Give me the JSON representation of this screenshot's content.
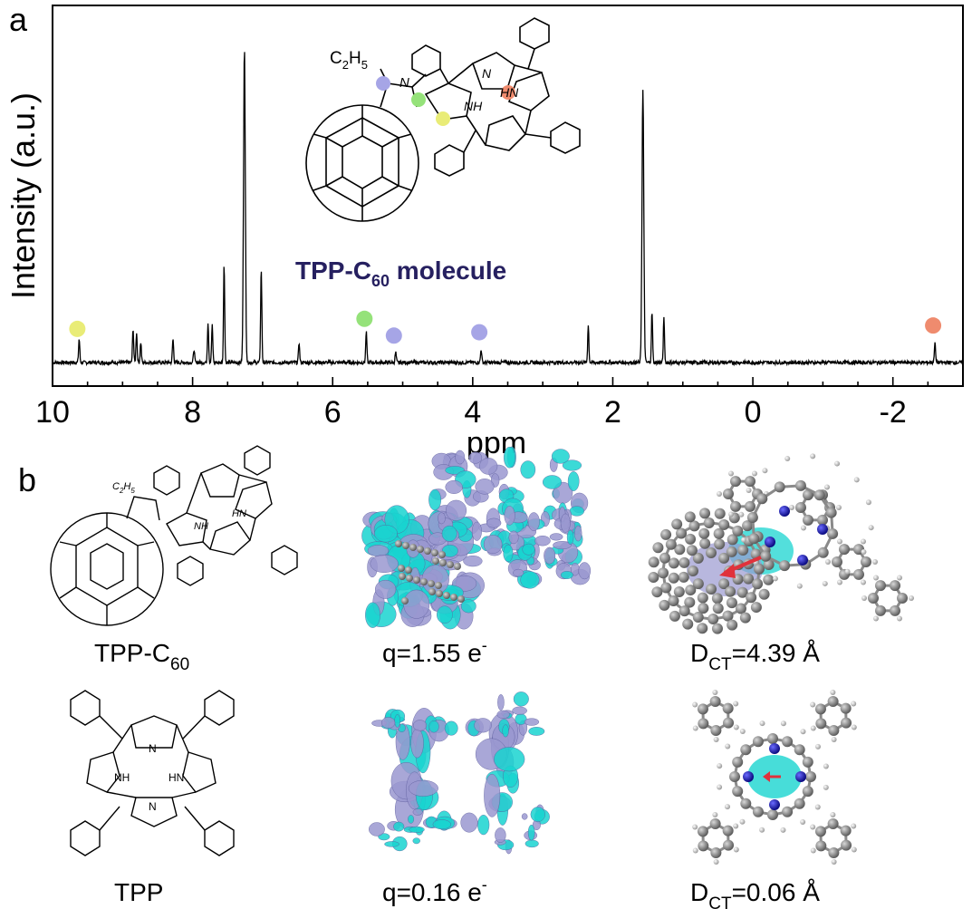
{
  "panel_labels": {
    "a": "a",
    "b": "b"
  },
  "nmr": {
    "molecule_label": "TPP-C",
    "molecule_sub": "60",
    "molecule_suffix": " molecule",
    "ethyl_label": "C",
    "ethyl_sub1": "2",
    "ethyl_mid": "H",
    "ethyl_sub2": "5",
    "N_label": "N",
    "NH_label": "NH",
    "HN_label": "HN"
  },
  "chart_data": {
    "type": "line",
    "title": "",
    "xlabel": "ppm",
    "ylabel": "Intensity (a.u.)",
    "xlim": [
      10.0,
      -3.0
    ],
    "ylim": [
      0,
      100
    ],
    "xticks": [
      10,
      8,
      6,
      4,
      2,
      0,
      -2
    ],
    "xtick_labels": [
      "10",
      "8",
      "6",
      "4",
      "2",
      "0",
      "-2"
    ],
    "baseline": 3,
    "peaks": [
      {
        "ppm": 9.62,
        "height": 10
      },
      {
        "ppm": 8.85,
        "height": 13
      },
      {
        "ppm": 8.8,
        "height": 12
      },
      {
        "ppm": 8.74,
        "height": 9
      },
      {
        "ppm": 8.28,
        "height": 10
      },
      {
        "ppm": 7.98,
        "height": 7
      },
      {
        "ppm": 7.78,
        "height": 15
      },
      {
        "ppm": 7.72,
        "height": 14
      },
      {
        "ppm": 7.55,
        "height": 32
      },
      {
        "ppm": 7.26,
        "height": 97
      },
      {
        "ppm": 7.02,
        "height": 31
      },
      {
        "ppm": 6.48,
        "height": 9
      },
      {
        "ppm": 5.52,
        "height": 12
      },
      {
        "ppm": 5.1,
        "height": 6
      },
      {
        "ppm": 3.88,
        "height": 7
      },
      {
        "ppm": 2.35,
        "height": 14
      },
      {
        "ppm": 1.57,
        "height": 84
      },
      {
        "ppm": 1.44,
        "height": 18
      },
      {
        "ppm": 1.27,
        "height": 16
      },
      {
        "ppm": -2.6,
        "height": 9
      }
    ],
    "markers": [
      {
        "ppm": 9.62,
        "level": 13,
        "color": "#e9ec77"
      },
      {
        "ppm": 5.52,
        "level": 16,
        "color": "#95e27a"
      },
      {
        "ppm": 5.1,
        "level": 11,
        "color": "#a6a5e6"
      },
      {
        "ppm": 3.88,
        "level": 12,
        "color": "#a6a5e6"
      },
      {
        "ppm": -2.6,
        "level": 14,
        "color": "#ef8b6e"
      }
    ]
  },
  "panel_b": {
    "row1": {
      "name_main": "TPP-C",
      "name_sub": "60",
      "charge_text": "q=1.55 e",
      "charge_sup": "-",
      "dct_main": "D",
      "dct_sub": "CT",
      "dct_value": "=4.39 Å"
    },
    "row2": {
      "name_main": "TPP",
      "charge_text": "q=0.16 e",
      "charge_sup": "-",
      "dct_main": "D",
      "dct_sub": "CT",
      "dct_value": "=0.06 Å"
    },
    "small_ethyl_label": "C",
    "small_ethyl_sub1": "2",
    "small_ethyl_mid": "H",
    "small_ethyl_sub2": "5",
    "small_NH": "NH",
    "small_HN": "HN",
    "small_N": "N"
  },
  "colors": {
    "navy_text": "#262060",
    "cyan": "#19d4d0",
    "lavender": "#9a98d0",
    "carbon": "#7d7d7d",
    "nitrogen": "#1c1cb0",
    "arrow": "#e0323c"
  }
}
